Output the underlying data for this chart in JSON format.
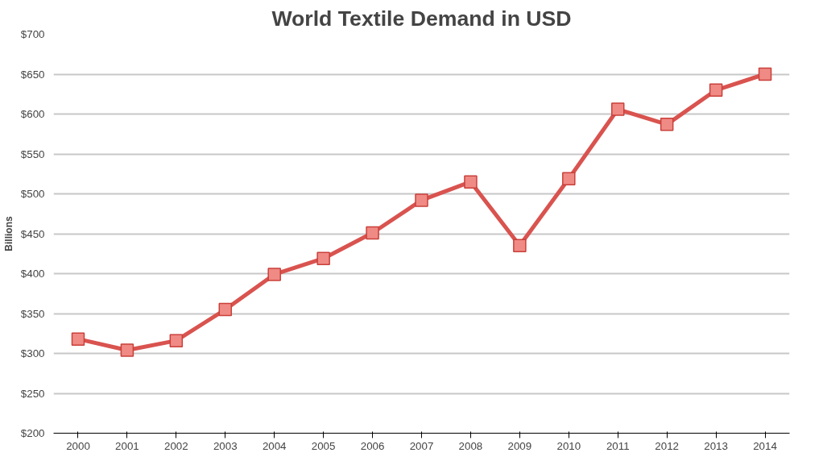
{
  "chart_data": {
    "type": "line",
    "title": "World Textile Demand in USD",
    "ylabel": "Billions",
    "categories": [
      "2000",
      "2001",
      "2002",
      "2003",
      "2004",
      "2005",
      "2006",
      "2007",
      "2008",
      "2009",
      "2010",
      "2011",
      "2012",
      "2013",
      "2014"
    ],
    "series": [
      {
        "color": "#d9534f",
        "values": [
          318,
          304,
          316,
          355,
          399,
          419,
          451,
          492,
          515,
          435,
          519,
          606,
          587,
          630,
          650
        ]
      }
    ],
    "ylim": [
      200,
      700
    ],
    "yticks": [
      {
        "value": 200,
        "label": "$200"
      },
      {
        "value": 250,
        "label": "$250"
      },
      {
        "value": 300,
        "label": "$300"
      },
      {
        "value": 350,
        "label": "$350"
      },
      {
        "value": 400,
        "label": "$400"
      },
      {
        "value": 450,
        "label": "$450"
      },
      {
        "value": 500,
        "label": "$500"
      },
      {
        "value": 550,
        "label": "$550"
      },
      {
        "value": 600,
        "label": "$600"
      },
      {
        "value": 650,
        "label": "$650"
      },
      {
        "value": 700,
        "label": "$700"
      }
    ],
    "grid": "y",
    "marker": "square",
    "line_style": "solid"
  }
}
